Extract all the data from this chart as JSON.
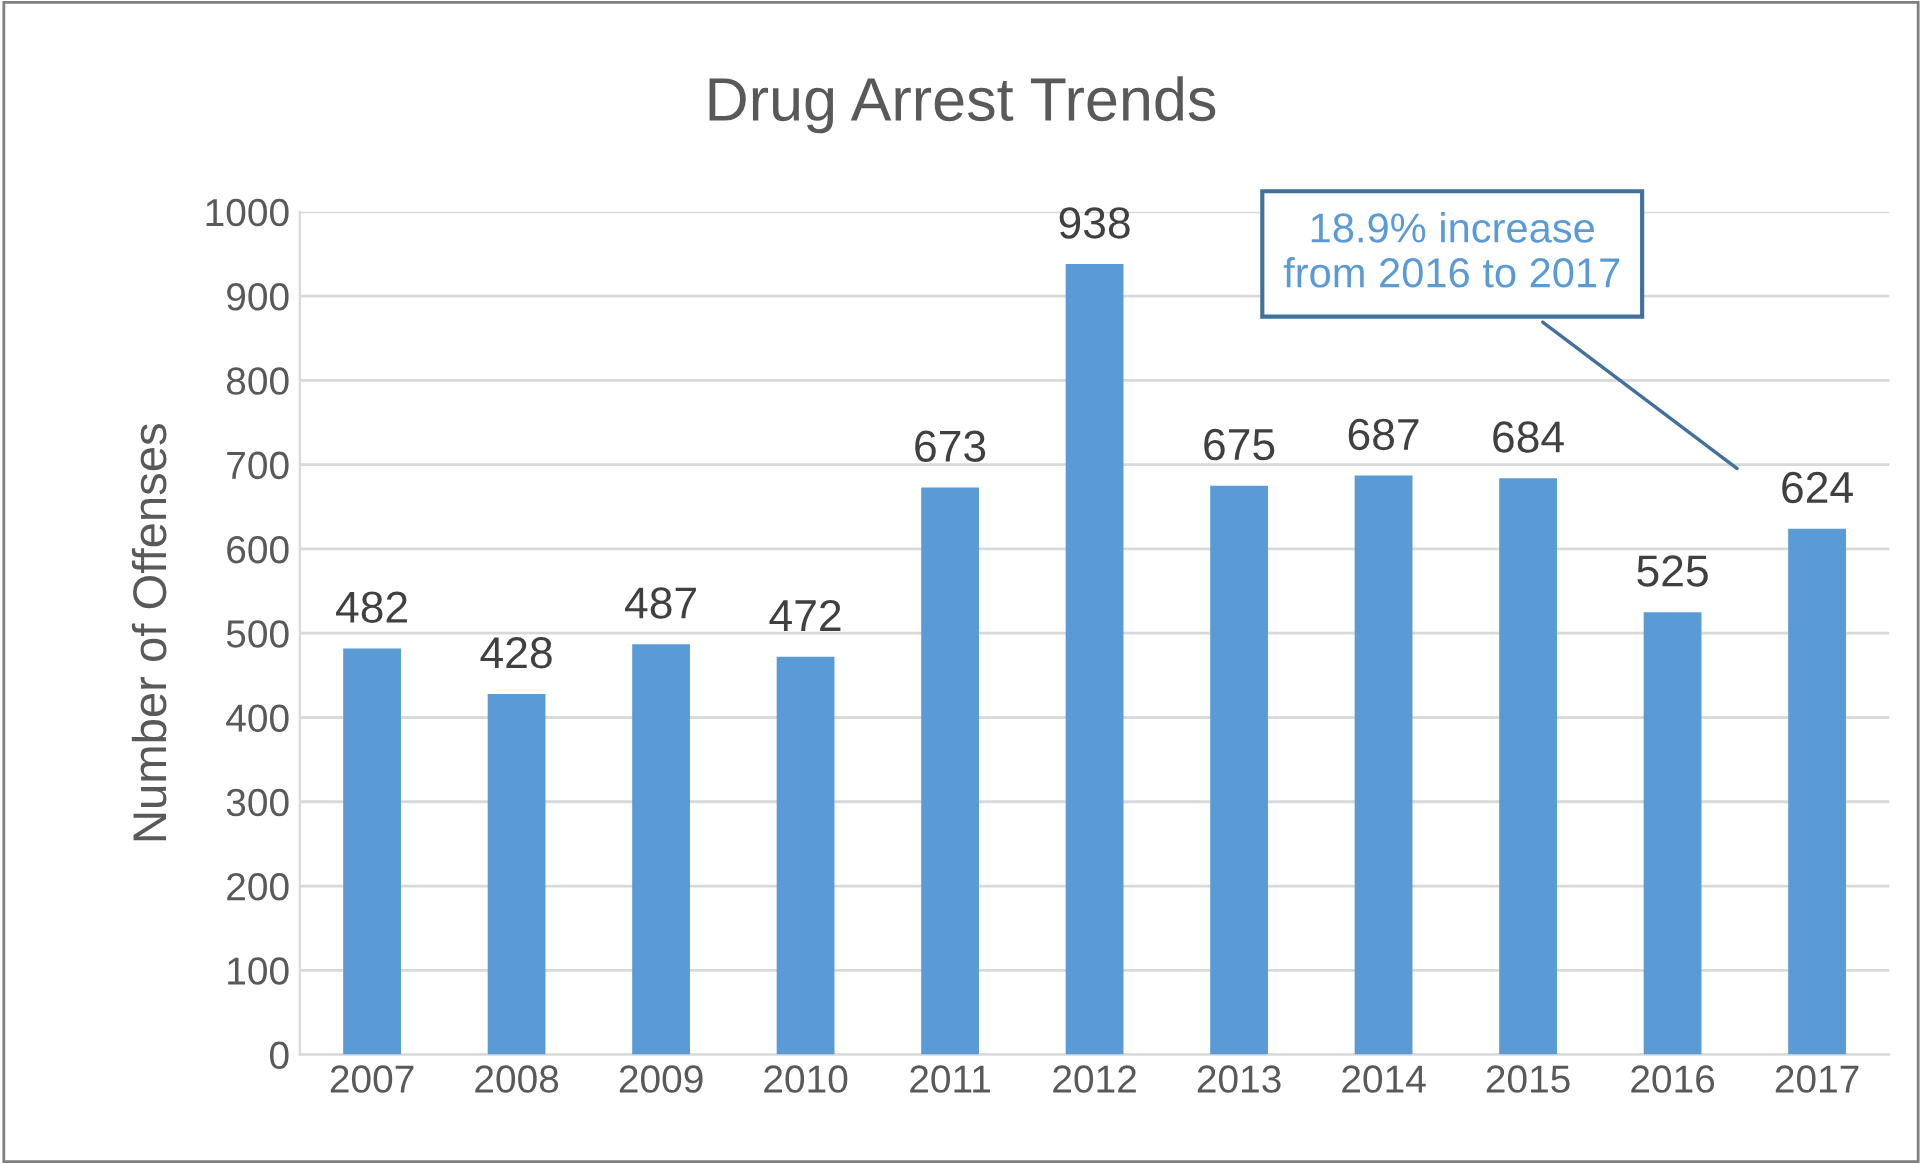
{
  "chart_data": {
    "type": "bar",
    "title": "Drug Arrest Trends",
    "ylabel": "Number of Offenses",
    "categories": [
      "2007",
      "2008",
      "2009",
      "2010",
      "2011",
      "2012",
      "2013",
      "2014",
      "2015",
      "2016",
      "2017"
    ],
    "values": [
      482,
      428,
      487,
      472,
      673,
      938,
      675,
      687,
      684,
      525,
      624
    ],
    "color": "#5b9bd5",
    "ylim": [
      0,
      1000
    ],
    "yticks": [
      0,
      100,
      200,
      300,
      400,
      500,
      600,
      700,
      800,
      900,
      1000
    ],
    "grid": "y",
    "data_labels": true,
    "annotations": [
      "18.9% increase\nfrom 2016 to 2017"
    ]
  }
}
